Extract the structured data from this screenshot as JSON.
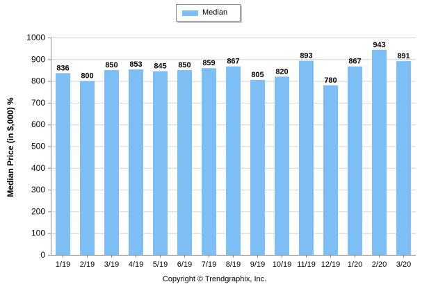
{
  "legend": {
    "label": "Median"
  },
  "footer": {
    "copyright": "Copyright © Trendgraphix, Inc."
  },
  "colors": {
    "bar": "#7dbef4",
    "grid": "#d4d4d4",
    "axis": "#8a8a8a"
  },
  "chart_data": {
    "type": "bar",
    "categories": [
      "1/19",
      "2/19",
      "3/19",
      "4/19",
      "5/19",
      "6/19",
      "7/19",
      "8/19",
      "9/19",
      "10/19",
      "11/19",
      "12/19",
      "1/20",
      "2/20",
      "3/20"
    ],
    "series": [
      {
        "name": "Median",
        "values": [
          836,
          800,
          850,
          853,
          845,
          850,
          859,
          867,
          805,
          820,
          893,
          780,
          867,
          943,
          891
        ]
      }
    ],
    "title": "",
    "xlabel": "",
    "ylabel": "Median Price (in $,000) %",
    "ylim": [
      0,
      1000
    ],
    "yticks": [
      0,
      100,
      200,
      300,
      400,
      500,
      600,
      700,
      800,
      900,
      1000
    ],
    "grid": true,
    "legend_position": "top-center",
    "data_labels": true
  }
}
